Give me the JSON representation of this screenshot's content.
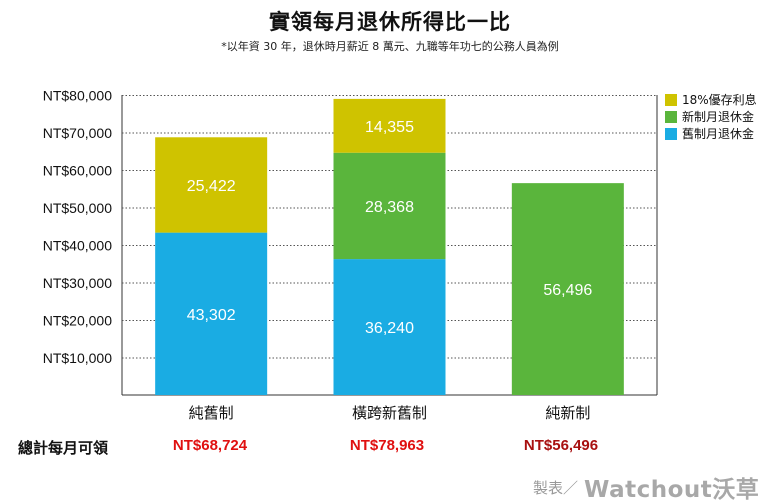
{
  "title": "實領每月退休所得比一比",
  "subtitle": "*以年資 30 年，退休時月薪近 8 萬元、九職等年功七的公務人員為例",
  "chart_data": {
    "type": "bar",
    "stacked": true,
    "categories": [
      "純舊制",
      "橫跨新舊制",
      "純新制"
    ],
    "series": [
      {
        "name": "舊制月退休金",
        "color": "#1aace3",
        "values": [
          43302,
          36240,
          0
        ]
      },
      {
        "name": "新制月退休金",
        "color": "#5ab53c",
        "values": [
          0,
          28368,
          56496
        ]
      },
      {
        "name": "18%優存利息",
        "color": "#cfc300",
        "values": [
          25422,
          14355,
          0
        ]
      }
    ],
    "data_labels": [
      [
        "43,302",
        "36,240",
        ""
      ],
      [
        "",
        "28,368",
        "56,496"
      ],
      [
        "25,422",
        "14,355",
        ""
      ]
    ],
    "ylim": [
      0,
      80000
    ],
    "yticks": [
      "NT$10,000",
      "NT$20,000",
      "NT$30,000",
      "NT$40,000",
      "NT$50,000",
      "NT$60,000",
      "NT$70,000",
      "NT$80,000"
    ],
    "ytick_values": [
      10000,
      20000,
      30000,
      40000,
      50000,
      60000,
      70000,
      80000
    ],
    "grid": true,
    "legend_position": "right"
  },
  "legend": [
    {
      "label": "18%優存利息",
      "color": "#cfc300"
    },
    {
      "label": "新制月退休金",
      "color": "#5ab53c"
    },
    {
      "label": "舊制月退休金",
      "color": "#1aace3"
    }
  ],
  "totals": {
    "label": "總計每月可領",
    "values": [
      "NT$68,724",
      "NT$78,963",
      "NT$56,496"
    ],
    "colors": [
      "#e01010",
      "#e01010",
      "#a81010"
    ]
  },
  "credit": {
    "prefix": "製表／",
    "brand": "Watchout沃草"
  }
}
